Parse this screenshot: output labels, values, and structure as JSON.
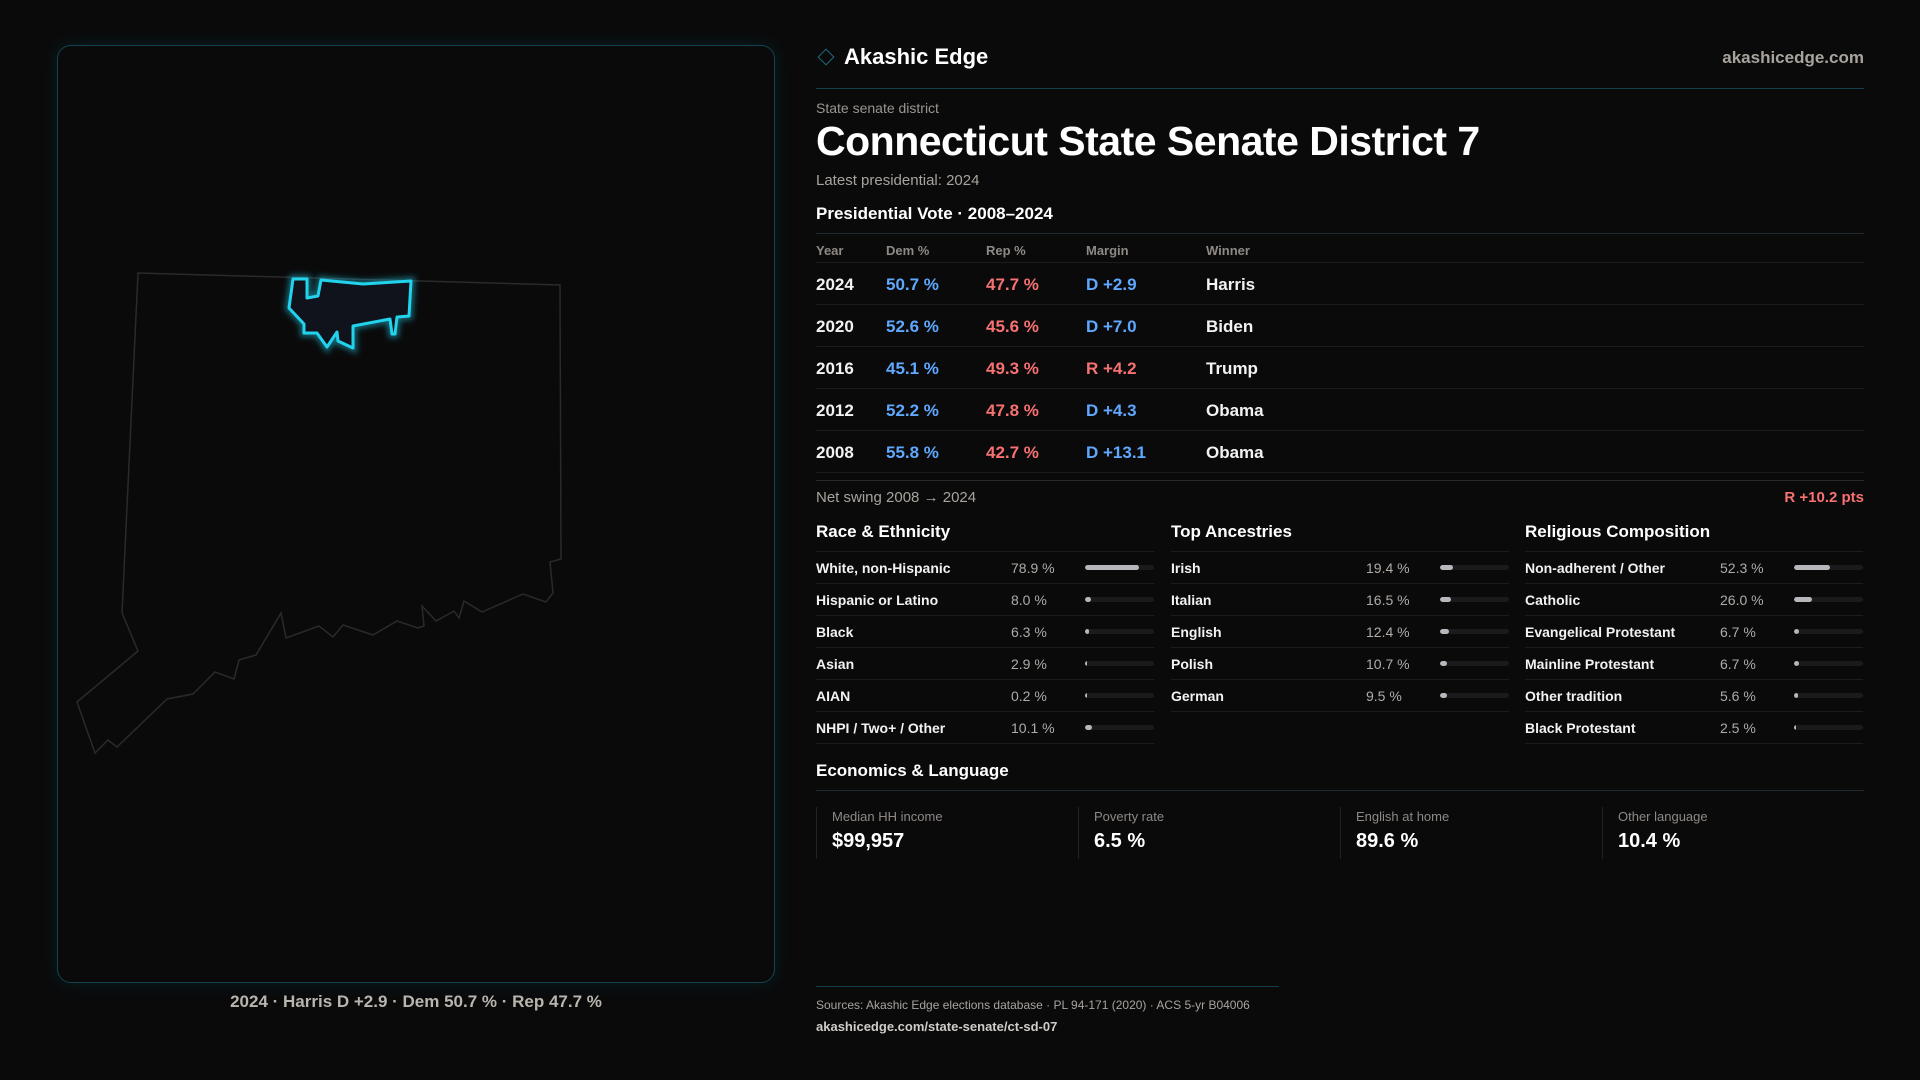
{
  "brand": {
    "name": "Akashic Edge",
    "site": "akashicedge.com",
    "accent": "#22d3ee"
  },
  "district": {
    "type": "State senate district",
    "title": "Connecticut State Senate District 7",
    "latest": "Latest presidential: 2024"
  },
  "map": {
    "caption": "2024 · Harris D +2.9 · Dem 50.7 % · Rep 47.7 %",
    "state": "Connecticut"
  },
  "vote": {
    "title": "Presidential Vote · 2008–2024",
    "headers": [
      "Year",
      "Dem %",
      "Rep %",
      "Margin",
      "Winner"
    ],
    "rows": [
      {
        "year": "2024",
        "dem": "50.7 %",
        "rep": "47.7 %",
        "margin": "D +2.9",
        "party": "D",
        "winner": "Harris"
      },
      {
        "year": "2020",
        "dem": "52.6 %",
        "rep": "45.6 %",
        "margin": "D +7.0",
        "party": "D",
        "winner": "Biden"
      },
      {
        "year": "2016",
        "dem": "45.1 %",
        "rep": "49.3 %",
        "margin": "R +4.2",
        "party": "R",
        "winner": "Trump"
      },
      {
        "year": "2012",
        "dem": "52.2 %",
        "rep": "47.8 %",
        "margin": "D +4.3",
        "party": "D",
        "winner": "Obama"
      },
      {
        "year": "2008",
        "dem": "55.8 %",
        "rep": "42.7 %",
        "margin": "D +13.1",
        "party": "D",
        "winner": "Obama"
      }
    ],
    "swing_label": "Net swing 2008 → 2024",
    "swing_value": "R +10.2 pts"
  },
  "demographics": [
    {
      "title": "Race & Ethnicity",
      "items": [
        {
          "label": "White, non-Hispanic",
          "value": "78.9 %",
          "pct": 78.9
        },
        {
          "label": "Hispanic or Latino",
          "value": "8.0 %",
          "pct": 8.0
        },
        {
          "label": "Black",
          "value": "6.3 %",
          "pct": 6.3
        },
        {
          "label": "Asian",
          "value": "2.9 %",
          "pct": 2.9
        },
        {
          "label": "AIAN",
          "value": "0.2 %",
          "pct": 0.2
        },
        {
          "label": "NHPI / Two+ / Other",
          "value": "10.1 %",
          "pct": 10.1
        }
      ]
    },
    {
      "title": "Top Ancestries",
      "items": [
        {
          "label": "Irish",
          "value": "19.4 %",
          "pct": 19.4
        },
        {
          "label": "Italian",
          "value": "16.5 %",
          "pct": 16.5
        },
        {
          "label": "English",
          "value": "12.4 %",
          "pct": 12.4
        },
        {
          "label": "Polish",
          "value": "10.7 %",
          "pct": 10.7
        },
        {
          "label": "German",
          "value": "9.5 %",
          "pct": 9.5
        }
      ]
    },
    {
      "title": "Religious Composition",
      "items": [
        {
          "label": "Non-adherent / Other",
          "value": "52.3 %",
          "pct": 52.3
        },
        {
          "label": "Catholic",
          "value": "26.0 %",
          "pct": 26.0
        },
        {
          "label": "Evangelical Protestant",
          "value": "6.7 %",
          "pct": 6.7
        },
        {
          "label": "Mainline Protestant",
          "value": "6.7 %",
          "pct": 6.7
        },
        {
          "label": "Other tradition",
          "value": "5.6 %",
          "pct": 5.6
        },
        {
          "label": "Black Protestant",
          "value": "2.5 %",
          "pct": 2.5
        }
      ]
    }
  ],
  "economics": {
    "title": "Economics & Language",
    "stats": [
      {
        "label": "Median HH income",
        "value": "$99,957"
      },
      {
        "label": "Poverty rate",
        "value": "6.5 %"
      },
      {
        "label": "English at home",
        "value": "89.6 %"
      },
      {
        "label": "Other language",
        "value": "10.4 %"
      }
    ]
  },
  "footer": {
    "sources": "Sources: Akashic Edge elections database · PL 94-171 (2020) · ACS 5-yr B04006",
    "url": "akashicedge.com/state-senate/ct-sd-07"
  }
}
